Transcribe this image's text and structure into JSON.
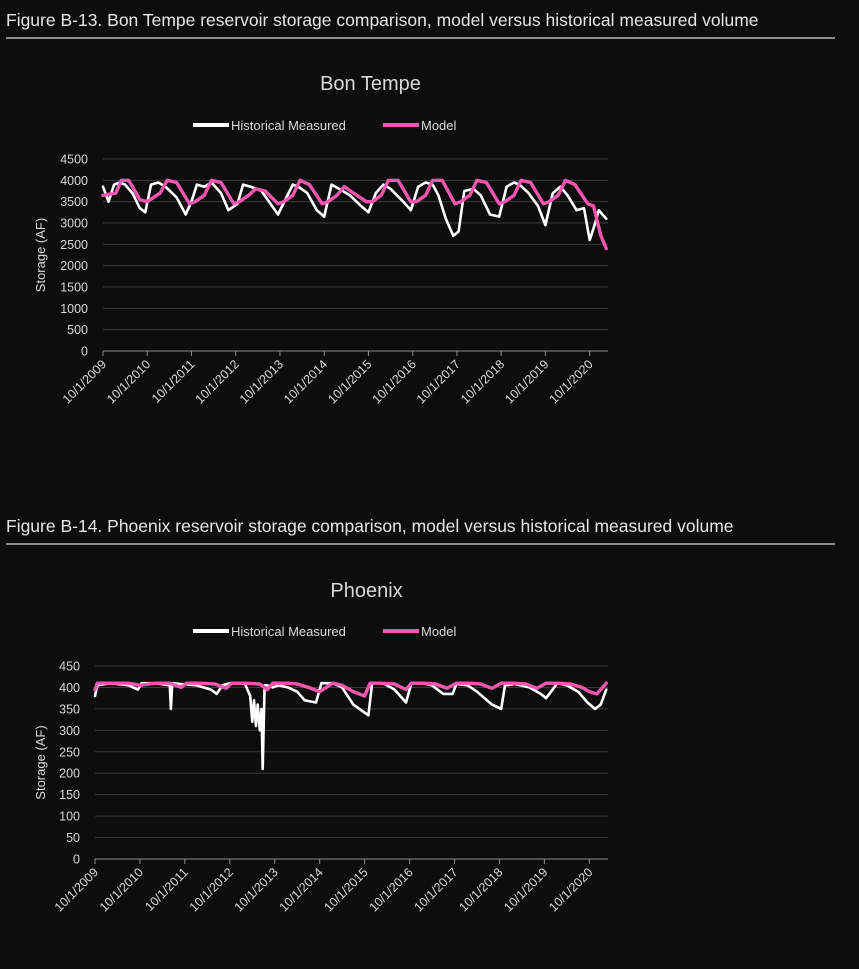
{
  "captions": {
    "fig13": "Figure B-13. Bon Tempe reservoir storage comparison, model versus historical measured volume",
    "fig14": "Figure B-14. Phoenix reservoir storage comparison, model versus historical measured volume"
  },
  "colors": {
    "historical": "#ffffff",
    "model": "#f256b0",
    "background": "#0d0d0d"
  },
  "chart_data": [
    {
      "type": "line",
      "title": "Bon Tempe",
      "ylabel": "Storage (AF)",
      "xlabel": "",
      "ylim": [
        0,
        4500
      ],
      "yticks": [
        0,
        500,
        1000,
        1500,
        2000,
        2500,
        3000,
        3500,
        4000,
        4500
      ],
      "xlim": [
        "2009-10-01",
        "2021-03-01"
      ],
      "xticks": [
        "10/1/2009",
        "10/1/2010",
        "10/1/2011",
        "10/1/2012",
        "10/1/2013",
        "10/1/2014",
        "10/1/2015",
        "10/1/2016",
        "10/1/2017",
        "10/1/2018",
        "10/1/2019",
        "10/1/2020"
      ],
      "grid": true,
      "legend": "top-center",
      "series": [
        {
          "name": "Historical Measured",
          "x": [
            "2009-10-01",
            "2009-11-15",
            "2010-01-01",
            "2010-02-15",
            "2010-04-01",
            "2010-06-01",
            "2010-08-01",
            "2010-09-15",
            "2010-11-01",
            "2011-01-01",
            "2011-03-01",
            "2011-06-01",
            "2011-08-15",
            "2011-10-01",
            "2011-11-15",
            "2012-01-15",
            "2012-03-15",
            "2012-06-01",
            "2012-08-01",
            "2012-10-15",
            "2012-12-01",
            "2013-02-01",
            "2013-05-01",
            "2013-07-15",
            "2013-09-15",
            "2013-11-15",
            "2014-01-15",
            "2014-03-01",
            "2014-05-15",
            "2014-08-01",
            "2014-10-01",
            "2014-12-01",
            "2015-02-01",
            "2015-05-01",
            "2015-08-01",
            "2015-10-01",
            "2015-12-01",
            "2016-02-01",
            "2016-04-01",
            "2016-07-15",
            "2016-09-15",
            "2016-11-15",
            "2017-01-15",
            "2017-03-15",
            "2017-05-01",
            "2017-07-01",
            "2017-09-01",
            "2017-10-15",
            "2017-12-01",
            "2018-02-15",
            "2018-04-15",
            "2018-07-01",
            "2018-09-15",
            "2018-11-15",
            "2019-01-15",
            "2019-03-01",
            "2019-05-15",
            "2019-08-01",
            "2019-10-01",
            "2019-12-01",
            "2020-02-01",
            "2020-04-01",
            "2020-06-15",
            "2020-08-15",
            "2020-10-01",
            "2020-11-15",
            "2020-12-15",
            "2021-01-15",
            "2021-02-15"
          ],
          "values": [
            3850,
            3500,
            3900,
            3950,
            3900,
            3700,
            3350,
            3250,
            3900,
            3950,
            3850,
            3600,
            3200,
            3500,
            3900,
            3850,
            3950,
            3700,
            3300,
            3450,
            3900,
            3850,
            3750,
            3450,
            3200,
            3550,
            3900,
            3850,
            3700,
            3300,
            3150,
            3900,
            3800,
            3650,
            3400,
            3250,
            3700,
            3900,
            3800,
            3500,
            3300,
            3850,
            3950,
            3900,
            3650,
            3100,
            2700,
            2800,
            3750,
            3800,
            3650,
            3200,
            3150,
            3850,
            3950,
            3900,
            3700,
            3400,
            2950,
            3700,
            3850,
            3650,
            3300,
            3350,
            2600,
            3000,
            3300,
            3200,
            3100
          ]
        },
        {
          "name": "Model",
          "x": [
            "2009-10-01",
            "2010-01-15",
            "2010-03-01",
            "2010-05-01",
            "2010-08-01",
            "2010-10-01",
            "2011-01-15",
            "2011-03-15",
            "2011-06-01",
            "2011-09-15",
            "2011-11-01",
            "2012-01-15",
            "2012-03-15",
            "2012-06-01",
            "2012-09-15",
            "2012-11-01",
            "2013-01-15",
            "2013-03-15",
            "2013-06-01",
            "2013-09-15",
            "2013-11-01",
            "2014-01-15",
            "2014-03-15",
            "2014-06-01",
            "2014-09-15",
            "2014-11-01",
            "2015-01-15",
            "2015-03-15",
            "2015-06-01",
            "2015-09-15",
            "2015-11-01",
            "2016-01-15",
            "2016-03-15",
            "2016-06-01",
            "2016-09-15",
            "2016-11-01",
            "2017-01-15",
            "2017-03-15",
            "2017-06-01",
            "2017-09-15",
            "2017-11-01",
            "2018-01-15",
            "2018-03-15",
            "2018-06-01",
            "2018-09-15",
            "2018-11-01",
            "2019-01-15",
            "2019-03-15",
            "2019-06-01",
            "2019-09-15",
            "2019-11-01",
            "2020-01-15",
            "2020-03-15",
            "2020-06-01",
            "2020-09-15",
            "2020-11-01",
            "2021-01-01",
            "2021-02-15"
          ],
          "values": [
            3650,
            3700,
            4000,
            4000,
            3550,
            3500,
            3700,
            4000,
            3950,
            3450,
            3500,
            3650,
            4000,
            3950,
            3450,
            3500,
            3650,
            3800,
            3750,
            3450,
            3500,
            3650,
            4000,
            3900,
            3450,
            3500,
            3650,
            3850,
            3700,
            3500,
            3500,
            3650,
            4000,
            4000,
            3500,
            3500,
            3650,
            4000,
            4000,
            3450,
            3500,
            3650,
            4000,
            3950,
            3450,
            3500,
            3650,
            4000,
            3950,
            3450,
            3500,
            3650,
            4000,
            3900,
            3450,
            3400,
            2700,
            2400
          ]
        }
      ]
    },
    {
      "type": "line",
      "title": "Phoenix",
      "ylabel": "Storage (AF)",
      "xlabel": "",
      "ylim": [
        0,
        450
      ],
      "yticks": [
        0,
        50,
        100,
        150,
        200,
        250,
        300,
        350,
        400,
        450
      ],
      "xlim": [
        "2009-10-01",
        "2021-03-01"
      ],
      "xticks": [
        "10/1/2009",
        "10/1/2010",
        "10/1/2011",
        "10/1/2012",
        "10/1/2013",
        "10/1/2014",
        "10/1/2015",
        "10/1/2016",
        "10/1/2017",
        "10/1/2018",
        "10/1/2019",
        "10/1/2020"
      ],
      "grid": true,
      "legend": "top-center",
      "series": [
        {
          "name": "Historical Measured",
          "x": [
            "2009-10-01",
            "2009-10-20",
            "2010-02-01",
            "2010-07-01",
            "2010-09-15",
            "2010-10-15",
            "2011-02-01",
            "2011-06-01",
            "2011-06-10",
            "2011-06-20",
            "2011-09-01",
            "2012-01-01",
            "2012-05-01",
            "2012-06-15",
            "2012-08-01",
            "2012-10-01",
            "2012-12-01",
            "2013-02-01",
            "2013-03-15",
            "2013-04-01",
            "2013-04-15",
            "2013-05-01",
            "2013-05-15",
            "2013-06-01",
            "2013-06-15",
            "2013-06-25",
            "2013-07-10",
            "2013-08-01",
            "2013-09-15",
            "2013-11-01",
            "2014-01-15",
            "2014-04-01",
            "2014-06-01",
            "2014-09-01",
            "2014-10-15",
            "2015-01-15",
            "2015-04-01",
            "2015-07-01",
            "2015-11-01",
            "2015-12-01",
            "2016-03-01",
            "2016-06-01",
            "2016-09-01",
            "2016-10-15",
            "2017-01-15",
            "2017-04-01",
            "2017-07-01",
            "2017-09-15",
            "2017-10-15",
            "2018-01-15",
            "2018-04-01",
            "2018-08-01",
            "2018-10-15",
            "2018-11-15",
            "2019-02-01",
            "2019-06-01",
            "2019-09-01",
            "2019-10-15",
            "2020-01-15",
            "2020-04-01",
            "2020-07-01",
            "2020-09-15",
            "2020-11-15",
            "2021-01-01",
            "2021-02-15"
          ],
          "values": [
            380,
            405,
            410,
            405,
            395,
            410,
            410,
            405,
            350,
            410,
            408,
            405,
            395,
            385,
            405,
            410,
            410,
            408,
            380,
            320,
            370,
            310,
            360,
            300,
            350,
            210,
            405,
            405,
            400,
            405,
            400,
            390,
            370,
            365,
            410,
            410,
            400,
            360,
            335,
            410,
            410,
            395,
            365,
            410,
            410,
            405,
            385,
            385,
            408,
            405,
            390,
            360,
            350,
            405,
            408,
            400,
            385,
            375,
            410,
            405,
            390,
            365,
            350,
            360,
            395
          ]
        },
        {
          "name": "Model",
          "x": [
            "2009-10-01",
            "2009-10-20",
            "2010-02-01",
            "2010-07-01",
            "2010-10-01",
            "2011-02-01",
            "2011-06-01",
            "2011-09-01",
            "2011-10-15",
            "2012-02-01",
            "2012-06-01",
            "2012-09-01",
            "2012-10-15",
            "2013-02-01",
            "2013-06-01",
            "2013-08-01",
            "2013-09-15",
            "2014-01-15",
            "2014-04-01",
            "2014-07-01",
            "2014-10-01",
            "2015-01-15",
            "2015-04-01",
            "2015-07-01",
            "2015-10-01",
            "2015-11-15",
            "2016-02-01",
            "2016-06-01",
            "2016-09-01",
            "2016-10-15",
            "2017-01-15",
            "2017-05-01",
            "2017-08-01",
            "2017-10-15",
            "2018-01-15",
            "2018-05-01",
            "2018-08-01",
            "2018-10-15",
            "2019-01-15",
            "2019-05-01",
            "2019-08-01",
            "2019-10-15",
            "2020-01-15",
            "2020-05-01",
            "2020-08-01",
            "2020-10-01",
            "2020-12-01",
            "2021-02-15"
          ],
          "values": [
            395,
            410,
            410,
            410,
            405,
            410,
            410,
            400,
            410,
            410,
            408,
            398,
            410,
            410,
            408,
            395,
            410,
            410,
            408,
            400,
            390,
            410,
            405,
            390,
            380,
            410,
            410,
            408,
            395,
            410,
            410,
            408,
            398,
            410,
            410,
            408,
            398,
            410,
            410,
            408,
            398,
            410,
            410,
            408,
            400,
            390,
            385,
            410
          ]
        }
      ]
    }
  ]
}
